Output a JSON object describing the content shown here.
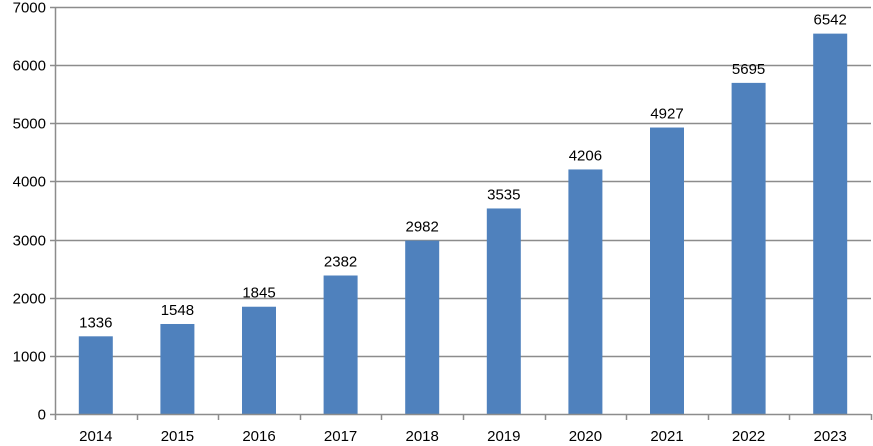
{
  "chart_data": {
    "type": "bar",
    "title": "",
    "xlabel": "",
    "ylabel": "",
    "categories": [
      "2014",
      "2015",
      "2016",
      "2017",
      "2018",
      "2019",
      "2020",
      "2021",
      "2022",
      "2023"
    ],
    "values": [
      1336,
      1548,
      1845,
      2382,
      2982,
      3535,
      4206,
      4927,
      5695,
      6542
    ],
    "data_labels": [
      "1336",
      "1548",
      "1845",
      "2382",
      "2982",
      "3535",
      "4206",
      "4927",
      "5695",
      "6542"
    ],
    "ylim": [
      0,
      7000
    ],
    "yticks": [
      0,
      1000,
      2000,
      3000,
      4000,
      5000,
      6000,
      7000
    ],
    "ytick_labels": [
      "0",
      "1000",
      "2000",
      "3000",
      "4000",
      "5000",
      "6000",
      "7000"
    ],
    "grid": true,
    "legend": "none",
    "colors": {
      "bar": "#4f81bd",
      "grid": "#8c8c8c",
      "axis": "#8c8c8c",
      "text": "#000000"
    }
  }
}
